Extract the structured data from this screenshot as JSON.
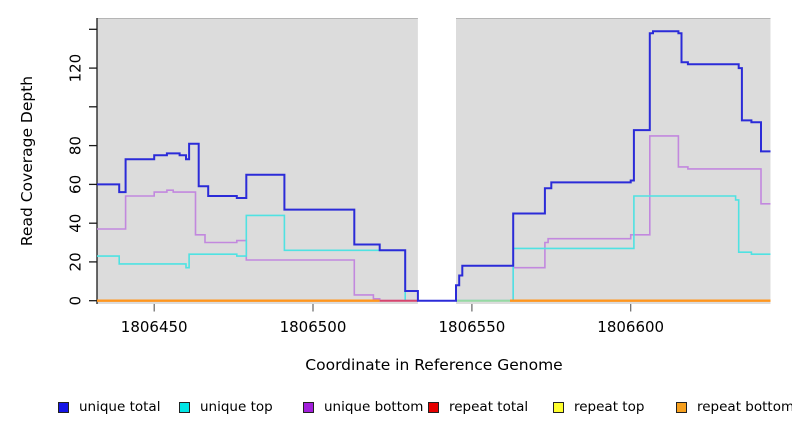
{
  "chart_data": {
    "type": "line",
    "subtype": "step-coverage-plot",
    "title": "",
    "xlabel": "Coordinate in Reference Genome",
    "ylabel": "Read Coverage Depth",
    "xlim": [
      1806432,
      1806644
    ],
    "ylim": [
      0,
      140
    ],
    "grid": false,
    "panel_bg": "#dcdcdc",
    "panel_top_border": "#b5b5b5",
    "no_data_region": [
      1806533,
      1806545
    ],
    "x_ticks": [
      {
        "value": 1806450,
        "label": "1806450"
      },
      {
        "value": 1806500,
        "label": "1806500"
      },
      {
        "value": 1806550,
        "label": "1806550"
      },
      {
        "value": 1806600,
        "label": "1806600"
      }
    ],
    "y_ticks": [
      {
        "value": 0,
        "label": "0"
      },
      {
        "value": 20,
        "label": "20"
      },
      {
        "value": 40,
        "label": "40"
      },
      {
        "value": 60,
        "label": "60"
      },
      {
        "value": 80,
        "label": "80"
      },
      {
        "value": 100,
        "label": ""
      },
      {
        "value": 120,
        "label": "120"
      },
      {
        "value": 140,
        "label": ""
      }
    ],
    "series": [
      {
        "name": "unique total",
        "color": "#2b2bd8",
        "width": 2.0,
        "draw": true,
        "runs": [
          {
            "end": 1806644,
            "steps": [
              [
                1806432,
                60
              ],
              [
                1806439,
                56
              ],
              [
                1806441,
                73
              ],
              [
                1806450,
                75
              ],
              [
                1806454,
                76
              ],
              [
                1806458,
                75
              ],
              [
                1806460,
                73
              ],
              [
                1806461,
                81
              ],
              [
                1806464,
                59
              ],
              [
                1806467,
                54
              ],
              [
                1806476,
                53
              ],
              [
                1806479,
                65
              ],
              [
                1806491,
                47
              ],
              [
                1806513,
                29
              ],
              [
                1806521,
                26
              ],
              [
                1806529,
                5
              ],
              [
                1806533,
                0
              ],
              [
                1806545,
                8
              ],
              [
                1806546,
                13
              ],
              [
                1806547,
                18
              ],
              [
                1806563,
                45
              ],
              [
                1806573,
                58
              ],
              [
                1806575,
                61
              ],
              [
                1806600,
                62
              ],
              [
                1806601,
                88
              ],
              [
                1806606,
                138
              ],
              [
                1806607,
                139
              ],
              [
                1806615,
                138
              ],
              [
                1806616,
                123
              ],
              [
                1806618,
                122
              ],
              [
                1806634,
                120
              ],
              [
                1806635,
                93
              ],
              [
                1806638,
                92
              ],
              [
                1806641,
                77
              ]
            ]
          }
        ]
      },
      {
        "name": "unique top",
        "color": "#4fe2e2",
        "width": 1.6,
        "draw": true,
        "runs": [
          {
            "end": 1806533,
            "steps": [
              [
                1806432,
                23
              ],
              [
                1806439,
                19
              ],
              [
                1806460,
                17
              ],
              [
                1806461,
                24
              ],
              [
                1806476,
                23
              ],
              [
                1806479,
                44
              ],
              [
                1806491,
                26
              ],
              [
                1806529,
                0
              ]
            ]
          },
          {
            "end": 1806644,
            "steps": [
              [
                1806545,
                0
              ],
              [
                1806563,
                27
              ],
              [
                1806601,
                54
              ],
              [
                1806633,
                52
              ],
              [
                1806634,
                25
              ],
              [
                1806638,
                24
              ]
            ]
          }
        ]
      },
      {
        "name": "unique bottom",
        "color": "#c288de",
        "width": 1.6,
        "draw": true,
        "runs": [
          {
            "end": 1806533,
            "steps": [
              [
                1806432,
                37
              ],
              [
                1806441,
                54
              ],
              [
                1806450,
                56
              ],
              [
                1806454,
                57
              ],
              [
                1806456,
                56
              ],
              [
                1806463,
                34
              ],
              [
                1806466,
                30
              ],
              [
                1806476,
                31
              ],
              [
                1806479,
                21
              ],
              [
                1806513,
                3
              ],
              [
                1806519,
                1
              ],
              [
                1806521,
                0
              ]
            ]
          },
          {
            "end": 1806644,
            "steps": [
              [
                1806545,
                0
              ],
              [
                1806563,
                17
              ],
              [
                1806573,
                30
              ],
              [
                1806574,
                32
              ],
              [
                1806600,
                34
              ],
              [
                1806606,
                85
              ],
              [
                1806615,
                69
              ],
              [
                1806618,
                68
              ],
              [
                1806641,
                50
              ]
            ]
          }
        ]
      },
      {
        "name": "repeat total",
        "color": "#d6456e",
        "width": 2.0,
        "draw": false,
        "runs": [
          {
            "end": 1806533,
            "steps": [
              [
                1806432,
                0
              ]
            ]
          }
        ]
      },
      {
        "name": "repeat top",
        "color": "#ffff2e",
        "width": 2.0,
        "draw": false,
        "runs": [
          {
            "end": 1806563,
            "steps": [
              [
                1806432,
                0
              ]
            ]
          }
        ]
      },
      {
        "name": "repeat bottom",
        "color": "#ff961e",
        "width": 2.4,
        "draw": false,
        "runs": [
          {
            "end": 1806644,
            "steps": [
              [
                1806432,
                0
              ]
            ]
          }
        ]
      }
    ],
    "zero_line_segments": [
      {
        "series": "repeat bottom",
        "color": "#ff961e",
        "width": 2.4,
        "from": 1806432,
        "to": 1806521
      },
      {
        "series": "repeat total",
        "color": "#d6456e",
        "width": 2.0,
        "from": 1806521,
        "to": 1806533
      },
      {
        "series": "unique top + repeat top overlap",
        "color": "#96d9a4",
        "width": 2.0,
        "from": 1806545,
        "to": 1806562
      },
      {
        "series": "repeat bottom",
        "color": "#ff961e",
        "width": 2.4,
        "from": 1806562,
        "to": 1806644
      }
    ],
    "legend": [
      {
        "label": "unique total",
        "fill": "#1414e6"
      },
      {
        "label": "unique top",
        "fill": "#00e5e5"
      },
      {
        "label": "unique bottom",
        "fill": "#a21fdb"
      },
      {
        "label": "repeat total",
        "fill": "#e60000"
      },
      {
        "label": "repeat top",
        "fill": "#ffff2e"
      },
      {
        "label": "repeat bottom",
        "fill": "#f7a01e"
      }
    ],
    "legend_position": "bottom"
  }
}
